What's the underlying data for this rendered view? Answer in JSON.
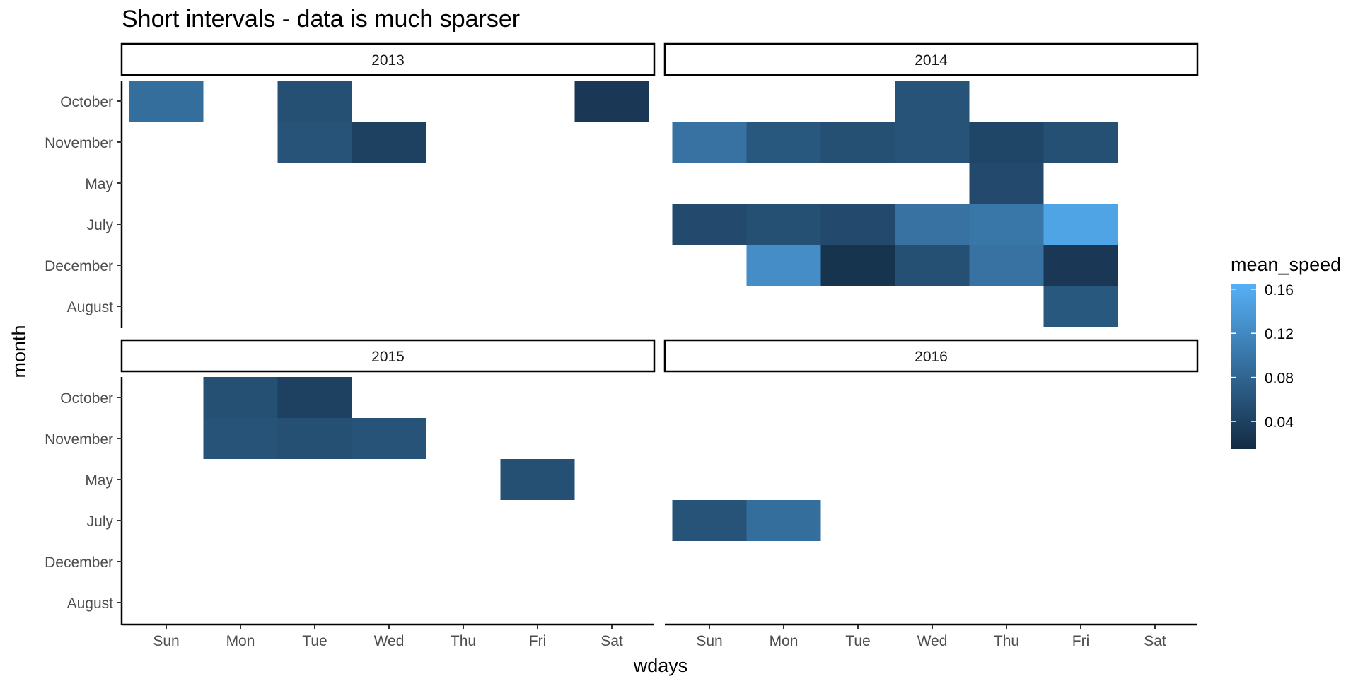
{
  "chart_data": {
    "type": "heatmap",
    "title": "Short intervals - data is much sparser",
    "xlabel": "wdays",
    "ylabel": "month",
    "x_categories": [
      "Sun",
      "Mon",
      "Tue",
      "Wed",
      "Thu",
      "Fri",
      "Sat"
    ],
    "y_categories": [
      "October",
      "November",
      "May",
      "July",
      "December",
      "August"
    ],
    "grid": false,
    "legend": {
      "title": "mean_speed",
      "placement": "right",
      "range": [
        0.015,
        0.165
      ],
      "ticks": [
        0.04,
        0.08,
        0.12,
        0.16
      ],
      "tick_labels": [
        "0.04",
        "0.08",
        "0.12",
        "0.16"
      ],
      "low_color": "#132B43",
      "high_color": "#56B1F7"
    },
    "panels": [
      {
        "label": "2013",
        "cells": [
          {
            "x": "Sun",
            "y": "October",
            "value": 0.09
          },
          {
            "x": "Tue",
            "y": "October",
            "value": 0.055
          },
          {
            "x": "Sat",
            "y": "October",
            "value": 0.03
          },
          {
            "x": "Tue",
            "y": "November",
            "value": 0.06
          },
          {
            "x": "Wed",
            "y": "November",
            "value": 0.04
          }
        ]
      },
      {
        "label": "2014",
        "cells": [
          {
            "x": "Wed",
            "y": "October",
            "value": 0.06
          },
          {
            "x": "Sun",
            "y": "November",
            "value": 0.095
          },
          {
            "x": "Mon",
            "y": "November",
            "value": 0.065
          },
          {
            "x": "Tue",
            "y": "November",
            "value": 0.055
          },
          {
            "x": "Wed",
            "y": "November",
            "value": 0.06
          },
          {
            "x": "Thu",
            "y": "November",
            "value": 0.045
          },
          {
            "x": "Fri",
            "y": "November",
            "value": 0.055
          },
          {
            "x": "Thu",
            "y": "May",
            "value": 0.05
          },
          {
            "x": "Sun",
            "y": "July",
            "value": 0.05
          },
          {
            "x": "Mon",
            "y": "July",
            "value": 0.055
          },
          {
            "x": "Tue",
            "y": "July",
            "value": 0.05
          },
          {
            "x": "Wed",
            "y": "July",
            "value": 0.095
          },
          {
            "x": "Thu",
            "y": "July",
            "value": 0.1
          },
          {
            "x": "Fri",
            "y": "July",
            "value": 0.15
          },
          {
            "x": "Mon",
            "y": "December",
            "value": 0.125
          },
          {
            "x": "Tue",
            "y": "December",
            "value": 0.025
          },
          {
            "x": "Wed",
            "y": "December",
            "value": 0.055
          },
          {
            "x": "Thu",
            "y": "December",
            "value": 0.095
          },
          {
            "x": "Fri",
            "y": "December",
            "value": 0.03
          },
          {
            "x": "Fri",
            "y": "August",
            "value": 0.065
          }
        ]
      },
      {
        "label": "2015",
        "cells": [
          {
            "x": "Mon",
            "y": "October",
            "value": 0.055
          },
          {
            "x": "Tue",
            "y": "October",
            "value": 0.04
          },
          {
            "x": "Mon",
            "y": "November",
            "value": 0.06
          },
          {
            "x": "Tue",
            "y": "November",
            "value": 0.055
          },
          {
            "x": "Wed",
            "y": "November",
            "value": 0.06
          },
          {
            "x": "Fri",
            "y": "May",
            "value": 0.055
          }
        ]
      },
      {
        "label": "2016",
        "cells": [
          {
            "x": "Sun",
            "y": "July",
            "value": 0.06
          },
          {
            "x": "Mon",
            "y": "July",
            "value": 0.09
          }
        ]
      }
    ]
  }
}
